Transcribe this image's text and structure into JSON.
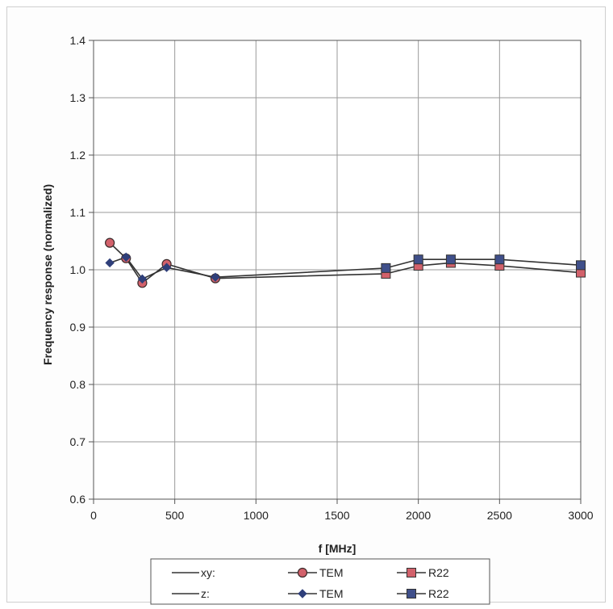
{
  "chart_data": {
    "type": "line",
    "title": "",
    "xlabel": "f [MHz]",
    "ylabel": "Frequency response (normalized)",
    "xlim": [
      0,
      3000
    ],
    "ylim": [
      0.6,
      1.4
    ],
    "xticks": [
      0,
      500,
      1000,
      1500,
      2000,
      2500,
      3000
    ],
    "yticks": [
      0.6,
      0.7,
      0.8,
      0.9,
      1.0,
      1.1,
      1.2,
      1.3,
      1.4
    ],
    "xtick_labels": [
      "0",
      "500",
      "1000",
      "1500",
      "2000",
      "2500",
      "3000"
    ],
    "ytick_labels": [
      "0.6",
      "0.7",
      "0.8",
      "0.9",
      "1.0",
      "1.1",
      "1.2",
      "1.3",
      "1.4"
    ],
    "grid": true,
    "legend_position": "bottom",
    "legend_groups": [
      {
        "label": "xy:",
        "entries": [
          "TEM",
          "R22"
        ]
      },
      {
        "label": "z:",
        "entries": [
          "TEM",
          "R22"
        ]
      }
    ],
    "series": [
      {
        "name": "TEM",
        "group": "xy:",
        "marker": "circle",
        "color": "#d2616b",
        "x": [
          100,
          200,
          300,
          450,
          750
        ],
        "y": [
          1.047,
          1.02,
          0.977,
          1.01,
          0.985
        ]
      },
      {
        "name": "R22",
        "group": "xy:",
        "marker": "square",
        "color": "#d2616b",
        "x": [
          750,
          1800,
          2000,
          2200,
          2500,
          3000
        ],
        "y": [
          0.985,
          0.993,
          1.007,
          1.012,
          1.007,
          0.995
        ]
      },
      {
        "name": "TEM",
        "group": "z:",
        "marker": "diamond",
        "color": "#2f3f7a",
        "x": [
          100,
          200,
          300,
          450,
          750
        ],
        "y": [
          1.012,
          1.022,
          0.984,
          1.004,
          0.987
        ]
      },
      {
        "name": "R22",
        "group": "z:",
        "marker": "square",
        "color": "#3f4f8a",
        "x": [
          750,
          1800,
          2000,
          2200,
          2500,
          3000
        ],
        "y": [
          0.987,
          1.003,
          1.018,
          1.018,
          1.018,
          1.008
        ]
      }
    ],
    "line_color": "#333333"
  }
}
